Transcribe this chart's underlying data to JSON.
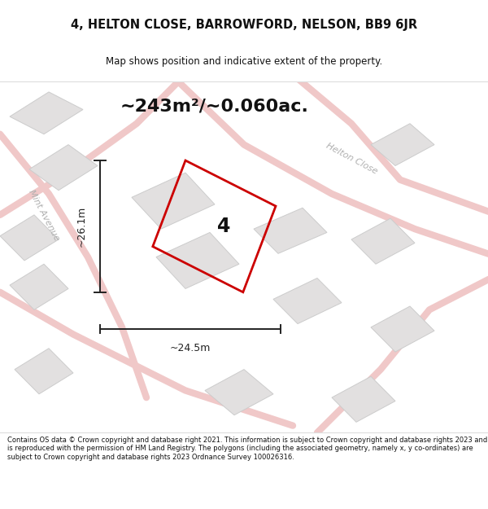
{
  "title": "4, HELTON CLOSE, BARROWFORD, NELSON, BB9 6JR",
  "subtitle": "Map shows position and indicative extent of the property.",
  "area_text": "~243m²/~0.060ac.",
  "dim_width": "~24.5m",
  "dim_height": "~26.1m",
  "plot_number": "4",
  "footer": "Contains OS data © Crown copyright and database right 2021. This information is subject to Crown copyright and database rights 2023 and is reproduced with the permission of HM Land Registry. The polygons (including the associated geometry, namely x, y co-ordinates) are subject to Crown copyright and database rights 2023 Ordnance Survey 100026316.",
  "bg_color": "#f7f7f7",
  "map_bg_color": "#f2f0f0",
  "road_color": "#f0c8c8",
  "building_color": "#e2e0e0",
  "building_edge_color": "#cccccc",
  "plot_edge_color": "#cc0000",
  "dim_line_color": "#222222",
  "street_label_color": "#b0b0b0",
  "title_color": "#111111",
  "footer_color": "#111111",
  "area_text_color": "#111111",
  "title_fontsize": 10.5,
  "subtitle_fontsize": 8.5,
  "area_fontsize": 16,
  "footer_fontsize": 6.0,
  "dim_fontsize": 9,
  "plot_num_fontsize": 17,
  "street_fontsize": 8
}
